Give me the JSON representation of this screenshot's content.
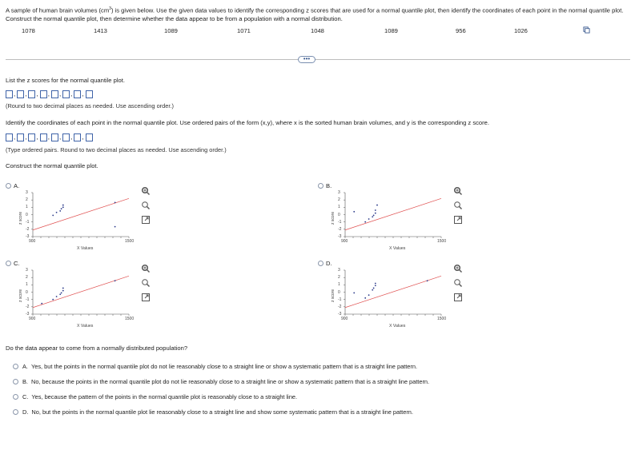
{
  "intro": {
    "part1": "A sample of human brain volumes (cm",
    "sup": "3",
    "part2": ") is given below. Use the given data values to identify the corresponding z scores that are used for a normal quantile plot, then identify the coordinates of each point in the normal quantile plot. Construct the normal quantile plot, then determine whether the data appear to be from a population with a normal distribution."
  },
  "values": [
    "1078",
    "1413",
    "1089",
    "1071",
    "1048",
    "1089",
    "956",
    "1026"
  ],
  "more_label": "•••",
  "q1": {
    "text": "List the z scores for the normal quantile plot.",
    "hint": "(Round to two decimal places as needed. Use ascending order.)"
  },
  "q2": {
    "text": "Identify the coordinates of each point in the normal quantile plot. Use ordered pairs of the form (x,y), where x is the sorted human brain volumes, and y is the corresponding z score.",
    "hint": "(Type ordered pairs. Round to two decimal places as needed. Use ascending order.)"
  },
  "q3": {
    "text": "Construct the normal quantile plot."
  },
  "plot_axis": {
    "ylabel": "z score",
    "xlabel": "X Values",
    "yticks": [
      "3",
      "2",
      "1",
      "0",
      "-1",
      "-2",
      "-3"
    ],
    "xticks": [
      "900",
      "1500"
    ]
  },
  "plots": [
    {
      "label": "A.",
      "points": [
        [
          1026,
          -0.1
        ],
        [
          1048,
          0.3
        ],
        [
          1071,
          0.5
        ],
        [
          1078,
          0.8
        ],
        [
          1089,
          1.0
        ],
        [
          1089,
          1.3
        ],
        [
          1413,
          1.65
        ],
        [
          1413,
          -1.65
        ]
      ]
    },
    {
      "label": "B.",
      "points": [
        [
          956,
          0.4
        ],
        [
          1026,
          -1.0
        ],
        [
          1048,
          -0.6
        ],
        [
          1071,
          -0.3
        ],
        [
          1078,
          -0.1
        ],
        [
          1089,
          0.2
        ],
        [
          1089,
          0.6
        ],
        [
          1100,
          1.3
        ]
      ]
    },
    {
      "label": "C.",
      "points": [
        [
          956,
          -1.55
        ],
        [
          1026,
          -1.0
        ],
        [
          1048,
          -0.6
        ],
        [
          1071,
          -0.3
        ],
        [
          1078,
          -0.1
        ],
        [
          1089,
          0.2
        ],
        [
          1089,
          0.55
        ],
        [
          1413,
          1.55
        ]
      ]
    },
    {
      "label": "D.",
      "points": [
        [
          956,
          -0.1
        ],
        [
          1026,
          -0.8
        ],
        [
          1048,
          -0.4
        ],
        [
          1071,
          0.3
        ],
        [
          1078,
          0.55
        ],
        [
          1089,
          0.9
        ],
        [
          1089,
          1.2
        ],
        [
          1413,
          1.55
        ]
      ]
    }
  ],
  "q4": {
    "text": "Do the data appear to come from a normally distributed population?",
    "options": [
      {
        "label": "A.",
        "text": "Yes, but the points in the normal quantile plot do not lie reasonably close to a straight line or show a systematic pattern that is a straight line pattern."
      },
      {
        "label": "B.",
        "text": "No, because the points in the normal quantile plot do not lie reasonably close to a straight line or show a systematic pattern that is a straight line pattern."
      },
      {
        "label": "C.",
        "text": "Yes, because the pattern of the points in the normal quantile plot is reasonably close to a straight line."
      },
      {
        "label": "D.",
        "text": "No, but the points in the normal quantile plot lie reasonably close to a straight line and show some systematic pattern that is a straight line pattern."
      }
    ]
  },
  "colors": {
    "accent": "#3f63a8",
    "fit_line": "#e05050",
    "points": "#2b3a8a"
  }
}
